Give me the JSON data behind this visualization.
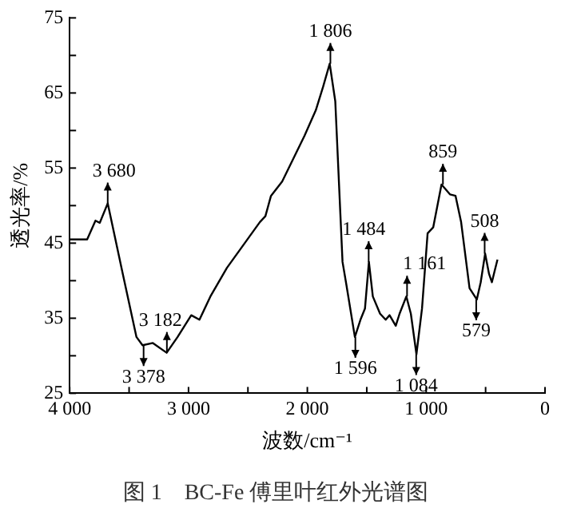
{
  "chart_data": {
    "type": "line",
    "title": "图 1　BC-Fe 傅里叶红外光谱图",
    "xlabel": "波数/cm⁻¹",
    "ylabel": "透光率/%",
    "xlim": [
      4000,
      0
    ],
    "xticks": [
      {
        "value": 4000,
        "label": "4 000"
      },
      {
        "value": 3500,
        "label": null
      },
      {
        "value": 3000,
        "label": "3 000"
      },
      {
        "value": 2500,
        "label": null
      },
      {
        "value": 2000,
        "label": "2 000"
      },
      {
        "value": 1500,
        "label": null
      },
      {
        "value": 1000,
        "label": "1 000"
      },
      {
        "value": 500,
        "label": null
      },
      0
    ],
    "ylim": [
      25,
      75
    ],
    "yticks": [
      25,
      {
        "value": 30,
        "label": null
      },
      35,
      {
        "value": 40,
        "label": null
      },
      45,
      {
        "value": 50,
        "label": null
      },
      55,
      {
        "value": 60,
        "label": null
      },
      65,
      {
        "value": 70,
        "label": null
      },
      75
    ],
    "grid": false,
    "legend": false,
    "marker": "none",
    "line_style": "solid",
    "series": [
      {
        "color": "#000000",
        "x": [
          4000,
          3853,
          3783,
          3747,
          3680,
          3553,
          3438,
          3387,
          3300,
          3184,
          3092,
          2977,
          2908,
          2816,
          2677,
          2400,
          2353,
          2306,
          2212,
          2024,
          1929,
          1868,
          1812,
          1765,
          1704,
          1671,
          1600,
          1553,
          1515,
          1482,
          1449,
          1388,
          1341,
          1308,
          1256,
          1224,
          1167,
          1129,
          1082,
          1035,
          988,
          941,
          871,
          800,
          753,
          706,
          635,
          574,
          541,
          504,
          471,
          447,
          424,
          400
        ],
        "values": [
          45.5,
          45.5,
          48,
          47.7,
          50.3,
          40.9,
          32.5,
          31.4,
          31.7,
          30.4,
          32.5,
          35.4,
          34.8,
          37.9,
          41.7,
          47.8,
          48.6,
          51.3,
          53.2,
          59.3,
          62.7,
          65.8,
          68.9,
          63.9,
          42.5,
          39.4,
          32.5,
          34.8,
          36.3,
          42.5,
          37.9,
          35.6,
          34.8,
          35.4,
          34,
          35.6,
          37.9,
          35.6,
          30.2,
          36.3,
          46.3,
          47.1,
          52.8,
          51.5,
          51.3,
          47.8,
          39,
          37.5,
          39.8,
          43.6,
          40.9,
          39.8,
          41.3,
          42.8
        ]
      }
    ],
    "annotations": [
      {
        "text": "3 680",
        "x": 3680,
        "y": 50.3
      },
      {
        "text": "3 378",
        "x": 3378,
        "y": 31.4
      },
      {
        "text": "3 182",
        "x": 3182,
        "y": 30.4
      },
      {
        "text": "1 806",
        "x": 1806,
        "y": 68.9
      },
      {
        "text": "1 596",
        "x": 1596,
        "y": 32.5
      },
      {
        "text": "1 484",
        "x": 1484,
        "y": 42.5
      },
      {
        "text": "1 161",
        "x": 1161,
        "y": 37.9
      },
      {
        "text": "1 084",
        "x": 1084,
        "y": 30.2
      },
      {
        "text": "859",
        "x": 859,
        "y": 52.8
      },
      {
        "text": "579",
        "x": 579,
        "y": 37.5
      },
      {
        "text": "508",
        "x": 508,
        "y": 43.6
      }
    ]
  }
}
